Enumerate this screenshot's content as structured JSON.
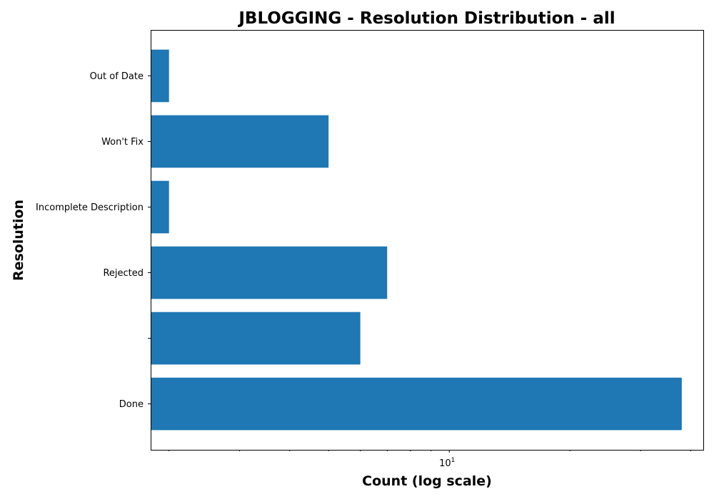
{
  "chart_data": {
    "type": "bar",
    "orientation": "horizontal",
    "title": "JBLOGGING - Resolution Distribution - all",
    "xlabel": "Count (log scale)",
    "ylabel": "Resolution",
    "xscale": "log",
    "xlim": [
      1.8,
      43
    ],
    "categories": [
      "Done",
      "",
      "Rejected",
      "Incomplete Description",
      "Won't Fix",
      "Out of Date"
    ],
    "values": [
      38,
      6,
      7,
      2,
      5,
      2
    ],
    "xtick_major": [
      {
        "value": 10,
        "base": "10",
        "exponent": "1"
      }
    ],
    "xtick_minor": [
      2,
      3,
      4,
      5,
      6,
      7,
      8,
      9,
      20,
      30,
      40
    ],
    "color": "#1f77b4"
  }
}
